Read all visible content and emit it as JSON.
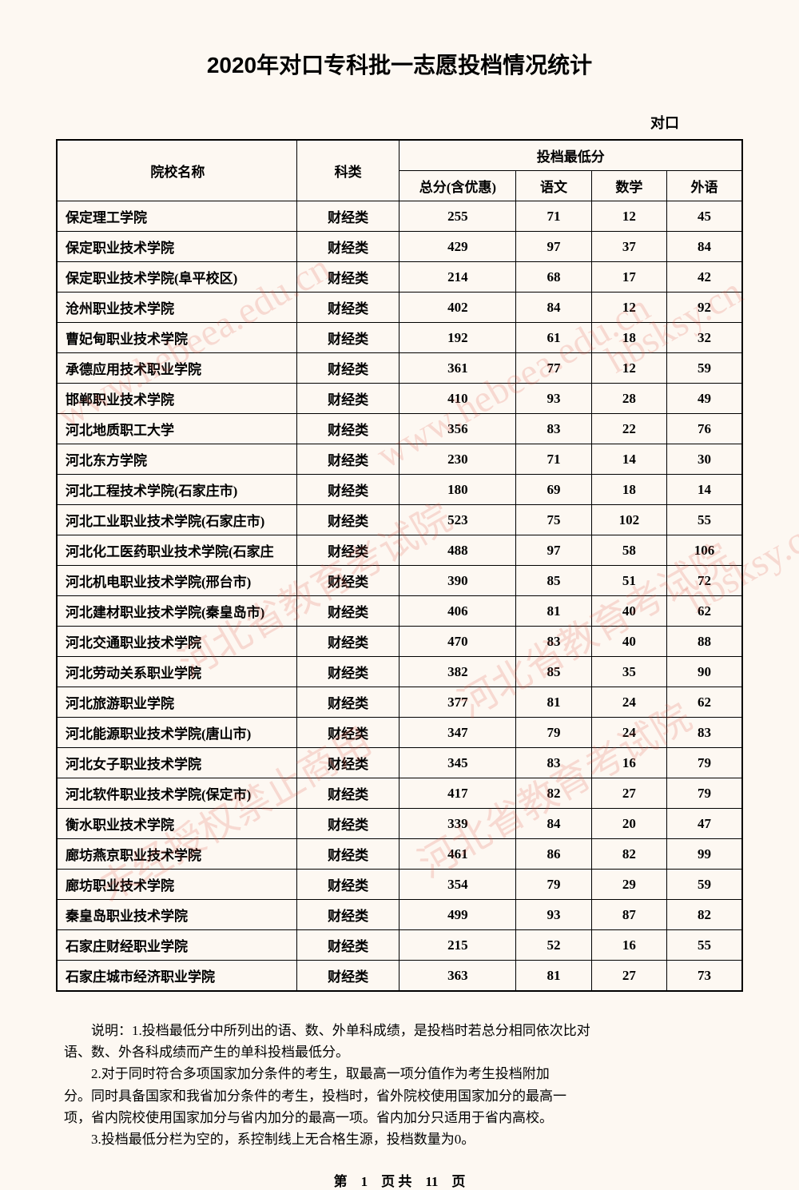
{
  "title": "2020年对口专科批一志愿投档情况统计",
  "category_label": "对口",
  "table": {
    "headers": {
      "college": "院校名称",
      "subject": "科类",
      "score_group": "投档最低分",
      "total": "总分(含优惠)",
      "chinese": "语文",
      "math": "数学",
      "foreign": "外语"
    },
    "rows": [
      {
        "name": "保定理工学院",
        "subject": "财经类",
        "total": "255",
        "chinese": "71",
        "math": "12",
        "foreign": "45"
      },
      {
        "name": "保定职业技术学院",
        "subject": "财经类",
        "total": "429",
        "chinese": "97",
        "math": "37",
        "foreign": "84"
      },
      {
        "name": "保定职业技术学院(阜平校区)",
        "subject": "财经类",
        "total": "214",
        "chinese": "68",
        "math": "17",
        "foreign": "42"
      },
      {
        "name": "沧州职业技术学院",
        "subject": "财经类",
        "total": "402",
        "chinese": "84",
        "math": "12",
        "foreign": "92"
      },
      {
        "name": "曹妃甸职业技术学院",
        "subject": "财经类",
        "total": "192",
        "chinese": "61",
        "math": "18",
        "foreign": "32"
      },
      {
        "name": "承德应用技术职业学院",
        "subject": "财经类",
        "total": "361",
        "chinese": "77",
        "math": "12",
        "foreign": "59"
      },
      {
        "name": "邯郸职业技术学院",
        "subject": "财经类",
        "total": "410",
        "chinese": "93",
        "math": "28",
        "foreign": "49"
      },
      {
        "name": "河北地质职工大学",
        "subject": "财经类",
        "total": "356",
        "chinese": "83",
        "math": "22",
        "foreign": "76"
      },
      {
        "name": "河北东方学院",
        "subject": "财经类",
        "total": "230",
        "chinese": "71",
        "math": "14",
        "foreign": "30"
      },
      {
        "name": "河北工程技术学院(石家庄市)",
        "subject": "财经类",
        "total": "180",
        "chinese": "69",
        "math": "18",
        "foreign": "14"
      },
      {
        "name": "河北工业职业技术学院(石家庄市)",
        "subject": "财经类",
        "total": "523",
        "chinese": "75",
        "math": "102",
        "foreign": "55"
      },
      {
        "name": "河北化工医药职业技术学院(石家庄",
        "subject": "财经类",
        "total": "488",
        "chinese": "97",
        "math": "58",
        "foreign": "106"
      },
      {
        "name": "河北机电职业技术学院(邢台市)",
        "subject": "财经类",
        "total": "390",
        "chinese": "85",
        "math": "51",
        "foreign": "72"
      },
      {
        "name": "河北建材职业技术学院(秦皇岛市)",
        "subject": "财经类",
        "total": "406",
        "chinese": "81",
        "math": "40",
        "foreign": "62"
      },
      {
        "name": "河北交通职业技术学院",
        "subject": "财经类",
        "total": "470",
        "chinese": "83",
        "math": "40",
        "foreign": "88"
      },
      {
        "name": "河北劳动关系职业学院",
        "subject": "财经类",
        "total": "382",
        "chinese": "85",
        "math": "35",
        "foreign": "90"
      },
      {
        "name": "河北旅游职业学院",
        "subject": "财经类",
        "total": "377",
        "chinese": "81",
        "math": "24",
        "foreign": "62"
      },
      {
        "name": "河北能源职业技术学院(唐山市)",
        "subject": "财经类",
        "total": "347",
        "chinese": "79",
        "math": "24",
        "foreign": "83"
      },
      {
        "name": "河北女子职业技术学院",
        "subject": "财经类",
        "total": "345",
        "chinese": "83",
        "math": "16",
        "foreign": "79"
      },
      {
        "name": "河北软件职业技术学院(保定市)",
        "subject": "财经类",
        "total": "417",
        "chinese": "82",
        "math": "27",
        "foreign": "79"
      },
      {
        "name": "衡水职业技术学院",
        "subject": "财经类",
        "total": "339",
        "chinese": "84",
        "math": "20",
        "foreign": "47"
      },
      {
        "name": "廊坊燕京职业技术学院",
        "subject": "财经类",
        "total": "461",
        "chinese": "86",
        "math": "82",
        "foreign": "99"
      },
      {
        "name": "廊坊职业技术学院",
        "subject": "财经类",
        "total": "354",
        "chinese": "79",
        "math": "29",
        "foreign": "59"
      },
      {
        "name": "秦皇岛职业技术学院",
        "subject": "财经类",
        "total": "499",
        "chinese": "93",
        "math": "87",
        "foreign": "82"
      },
      {
        "name": "石家庄财经职业学院",
        "subject": "财经类",
        "total": "215",
        "chinese": "52",
        "math": "16",
        "foreign": "55"
      },
      {
        "name": "石家庄城市经济职业学院",
        "subject": "财经类",
        "total": "363",
        "chinese": "81",
        "math": "27",
        "foreign": "73"
      }
    ]
  },
  "notes": {
    "line1": "说明：1.投档最低分中所列出的语、数、外单科成绩，是投档时若总分相同依次比对",
    "line2": "语、数、外各科成绩而产生的单科投档最低分。",
    "line3": "2.对于同时符合多项国家加分条件的考生，取最高一项分值作为考生投档附加",
    "line4": "分。同时具备国家和我省加分条件的考生，投档时，省外院校使用国家加分的最高一",
    "line5": "项，省内院校使用国家加分与省内加分的最高一项。省内加分只适用于省内高校。",
    "line6": "3.投档最低分栏为空的，系控制线上无合格生源，投档数量为0。"
  },
  "page_number": "第　1　页 共　11　页",
  "watermarks": {
    "w1": "www.hebeea.edu.cn",
    "w2": "河北省教育考试院",
    "w3": "hbsksy.cn",
    "w4": "未经授权禁止商用"
  }
}
